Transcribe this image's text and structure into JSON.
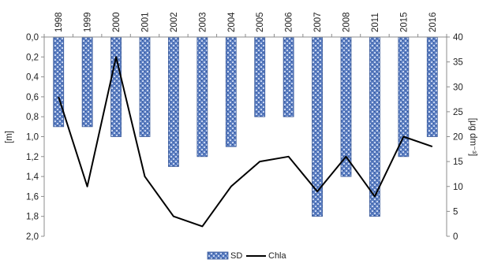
{
  "chart_data": {
    "type": "bar",
    "categories": [
      "1998",
      "1999",
      "2000",
      "2001",
      "2002",
      "2003",
      "2004",
      "2005",
      "2006",
      "2007",
      "2008",
      "2011",
      "2015",
      "2016"
    ],
    "series": [
      {
        "name": "SD",
        "type": "bar",
        "axis": "left",
        "color": "#5b7ec2",
        "values": [
          0.9,
          0.9,
          1.0,
          1.0,
          1.3,
          1.2,
          1.1,
          0.8,
          0.8,
          1.8,
          1.4,
          1.8,
          1.2,
          1.0
        ]
      },
      {
        "name": "Chla",
        "type": "line",
        "axis": "right",
        "color": "#000000",
        "values": [
          28,
          10,
          36,
          12,
          4,
          2,
          10,
          15,
          16,
          9,
          16,
          8,
          20,
          18
        ]
      }
    ],
    "y_left": {
      "label": "[m]",
      "ylim": [
        0,
        2
      ],
      "inverted": true,
      "tick_values": [
        0,
        0.2,
        0.4,
        0.6,
        0.8,
        1.0,
        1.2,
        1.4,
        1.6,
        1.8,
        2.0
      ],
      "tick_labels": [
        "0,0",
        "0,2",
        "0,4",
        "0,6",
        "0,8",
        "1,0",
        "1,2",
        "1,4",
        "1,6",
        "1,8",
        "2,0"
      ]
    },
    "y_right": {
      "label": "[μg dm⁻³]",
      "ylim": [
        0,
        40
      ],
      "tick_values": [
        0,
        5,
        10,
        15,
        20,
        25,
        30,
        35,
        40
      ],
      "tick_labels": [
        "0",
        "5",
        "10",
        "15",
        "20",
        "25",
        "30",
        "35",
        "40"
      ]
    },
    "x_axis_position": "top",
    "grid": false,
    "legend": {
      "position": "bottom",
      "entries": [
        "SD",
        "Chla"
      ]
    }
  }
}
